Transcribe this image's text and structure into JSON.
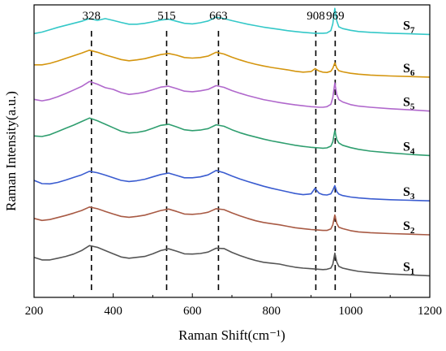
{
  "chart_data": {
    "type": "line",
    "title": "",
    "xlabel": "Raman Shift(cm⁻¹)",
    "ylabel": "Raman Intensity(a.u.)",
    "xlim": [
      200,
      1200
    ],
    "xticks": [
      200,
      400,
      600,
      800,
      1000,
      1200
    ],
    "ylim": [
      0,
      1
    ],
    "yticks_shown": false,
    "grid": false,
    "legend": "none (series labelled at right end of each trace)",
    "annotations": [
      {
        "label": "328",
        "x": 345
      },
      {
        "label": "515",
        "x": 535
      },
      {
        "label": "663",
        "x": 666
      },
      {
        "label": "908",
        "x": 912
      },
      {
        "label": "969",
        "x": 961
      }
    ],
    "x": [
      200,
      220,
      240,
      260,
      280,
      300,
      320,
      340,
      360,
      380,
      400,
      420,
      440,
      460,
      480,
      500,
      520,
      540,
      560,
      580,
      600,
      620,
      640,
      660,
      680,
      700,
      720,
      740,
      760,
      780,
      800,
      820,
      840,
      860,
      880,
      900,
      910,
      920,
      930,
      940,
      950,
      955,
      960,
      965,
      970,
      980,
      1000,
      1020,
      1050,
      1100,
      1150,
      1200
    ],
    "series": [
      {
        "name": "S",
        "sub": "1",
        "color": "#555555",
        "values": [
          0.137,
          0.128,
          0.128,
          0.134,
          0.14,
          0.148,
          0.16,
          0.177,
          0.171,
          0.16,
          0.149,
          0.138,
          0.134,
          0.137,
          0.14,
          0.149,
          0.16,
          0.166,
          0.158,
          0.149,
          0.148,
          0.15,
          0.155,
          0.168,
          0.167,
          0.154,
          0.143,
          0.134,
          0.126,
          0.12,
          0.117,
          0.114,
          0.108,
          0.103,
          0.1,
          0.098,
          0.097,
          0.096,
          0.095,
          0.096,
          0.1,
          0.113,
          0.151,
          0.121,
          0.106,
          0.1,
          0.094,
          0.089,
          0.085,
          0.08,
          0.077,
          0.074
        ]
      },
      {
        "name": "S",
        "sub": "2",
        "color": "#a85a44",
        "values": [
          0.27,
          0.263,
          0.266,
          0.273,
          0.28,
          0.288,
          0.297,
          0.309,
          0.303,
          0.294,
          0.285,
          0.277,
          0.274,
          0.277,
          0.281,
          0.289,
          0.297,
          0.302,
          0.294,
          0.285,
          0.284,
          0.286,
          0.291,
          0.303,
          0.3,
          0.289,
          0.279,
          0.27,
          0.262,
          0.256,
          0.252,
          0.248,
          0.243,
          0.238,
          0.235,
          0.232,
          0.231,
          0.23,
          0.229,
          0.229,
          0.234,
          0.248,
          0.282,
          0.253,
          0.24,
          0.235,
          0.228,
          0.224,
          0.221,
          0.218,
          0.216,
          0.214
        ]
      },
      {
        "name": "S",
        "sub": "3",
        "color": "#3a5cd0",
        "values": [
          0.4,
          0.389,
          0.388,
          0.393,
          0.401,
          0.41,
          0.419,
          0.431,
          0.426,
          0.418,
          0.409,
          0.4,
          0.396,
          0.399,
          0.404,
          0.412,
          0.42,
          0.425,
          0.417,
          0.409,
          0.409,
          0.412,
          0.419,
          0.434,
          0.426,
          0.415,
          0.405,
          0.396,
          0.388,
          0.38,
          0.373,
          0.367,
          0.361,
          0.355,
          0.351,
          0.354,
          0.373,
          0.356,
          0.351,
          0.35,
          0.354,
          0.366,
          0.382,
          0.362,
          0.353,
          0.348,
          0.343,
          0.34,
          0.337,
          0.334,
          0.332,
          0.33
        ]
      },
      {
        "name": "S",
        "sub": "4",
        "color": "#2f9e6f",
        "values": [
          0.552,
          0.55,
          0.556,
          0.567,
          0.578,
          0.589,
          0.601,
          0.613,
          0.604,
          0.592,
          0.58,
          0.568,
          0.562,
          0.564,
          0.569,
          0.578,
          0.588,
          0.592,
          0.583,
          0.573,
          0.57,
          0.572,
          0.577,
          0.59,
          0.585,
          0.573,
          0.563,
          0.555,
          0.548,
          0.541,
          0.535,
          0.53,
          0.525,
          0.52,
          0.516,
          0.513,
          0.512,
          0.511,
          0.51,
          0.511,
          0.517,
          0.532,
          0.57,
          0.54,
          0.528,
          0.52,
          0.512,
          0.506,
          0.5,
          0.494,
          0.489,
          0.485
        ]
      },
      {
        "name": "S",
        "sub": "5",
        "color": "#b068cc",
        "values": [
          0.677,
          0.672,
          0.677,
          0.686,
          0.697,
          0.709,
          0.721,
          0.738,
          0.729,
          0.717,
          0.711,
          0.7,
          0.694,
          0.697,
          0.702,
          0.71,
          0.719,
          0.722,
          0.714,
          0.705,
          0.703,
          0.706,
          0.711,
          0.724,
          0.718,
          0.707,
          0.698,
          0.69,
          0.683,
          0.676,
          0.671,
          0.666,
          0.662,
          0.658,
          0.655,
          0.652,
          0.651,
          0.65,
          0.65,
          0.652,
          0.66,
          0.683,
          0.733,
          0.694,
          0.676,
          0.668,
          0.659,
          0.654,
          0.65,
          0.645,
          0.641,
          0.637
        ]
      },
      {
        "name": "S",
        "sub": "6",
        "color": "#d4950e",
        "values": [
          0.795,
          0.795,
          0.8,
          0.808,
          0.817,
          0.826,
          0.835,
          0.845,
          0.838,
          0.829,
          0.821,
          0.813,
          0.809,
          0.812,
          0.816,
          0.823,
          0.83,
          0.834,
          0.828,
          0.82,
          0.818,
          0.82,
          0.825,
          0.838,
          0.832,
          0.821,
          0.812,
          0.804,
          0.797,
          0.791,
          0.786,
          0.782,
          0.778,
          0.773,
          0.77,
          0.772,
          0.782,
          0.774,
          0.77,
          0.769,
          0.773,
          0.783,
          0.802,
          0.784,
          0.775,
          0.771,
          0.766,
          0.763,
          0.76,
          0.757,
          0.755,
          0.753
        ]
      },
      {
        "name": "S",
        "sub": "7",
        "color": "#34c8c8",
        "values": [
          0.902,
          0.907,
          0.915,
          0.923,
          0.93,
          0.937,
          0.944,
          0.953,
          0.947,
          0.953,
          0.947,
          0.94,
          0.934,
          0.934,
          0.937,
          0.942,
          0.948,
          0.951,
          0.944,
          0.937,
          0.935,
          0.939,
          0.945,
          0.958,
          0.953,
          0.946,
          0.94,
          0.934,
          0.929,
          0.924,
          0.92,
          0.916,
          0.912,
          0.909,
          0.906,
          0.904,
          0.903,
          0.903,
          0.903,
          0.904,
          0.912,
          0.935,
          0.988,
          0.945,
          0.925,
          0.919,
          0.913,
          0.909,
          0.906,
          0.903,
          0.901,
          0.899
        ]
      }
    ]
  }
}
